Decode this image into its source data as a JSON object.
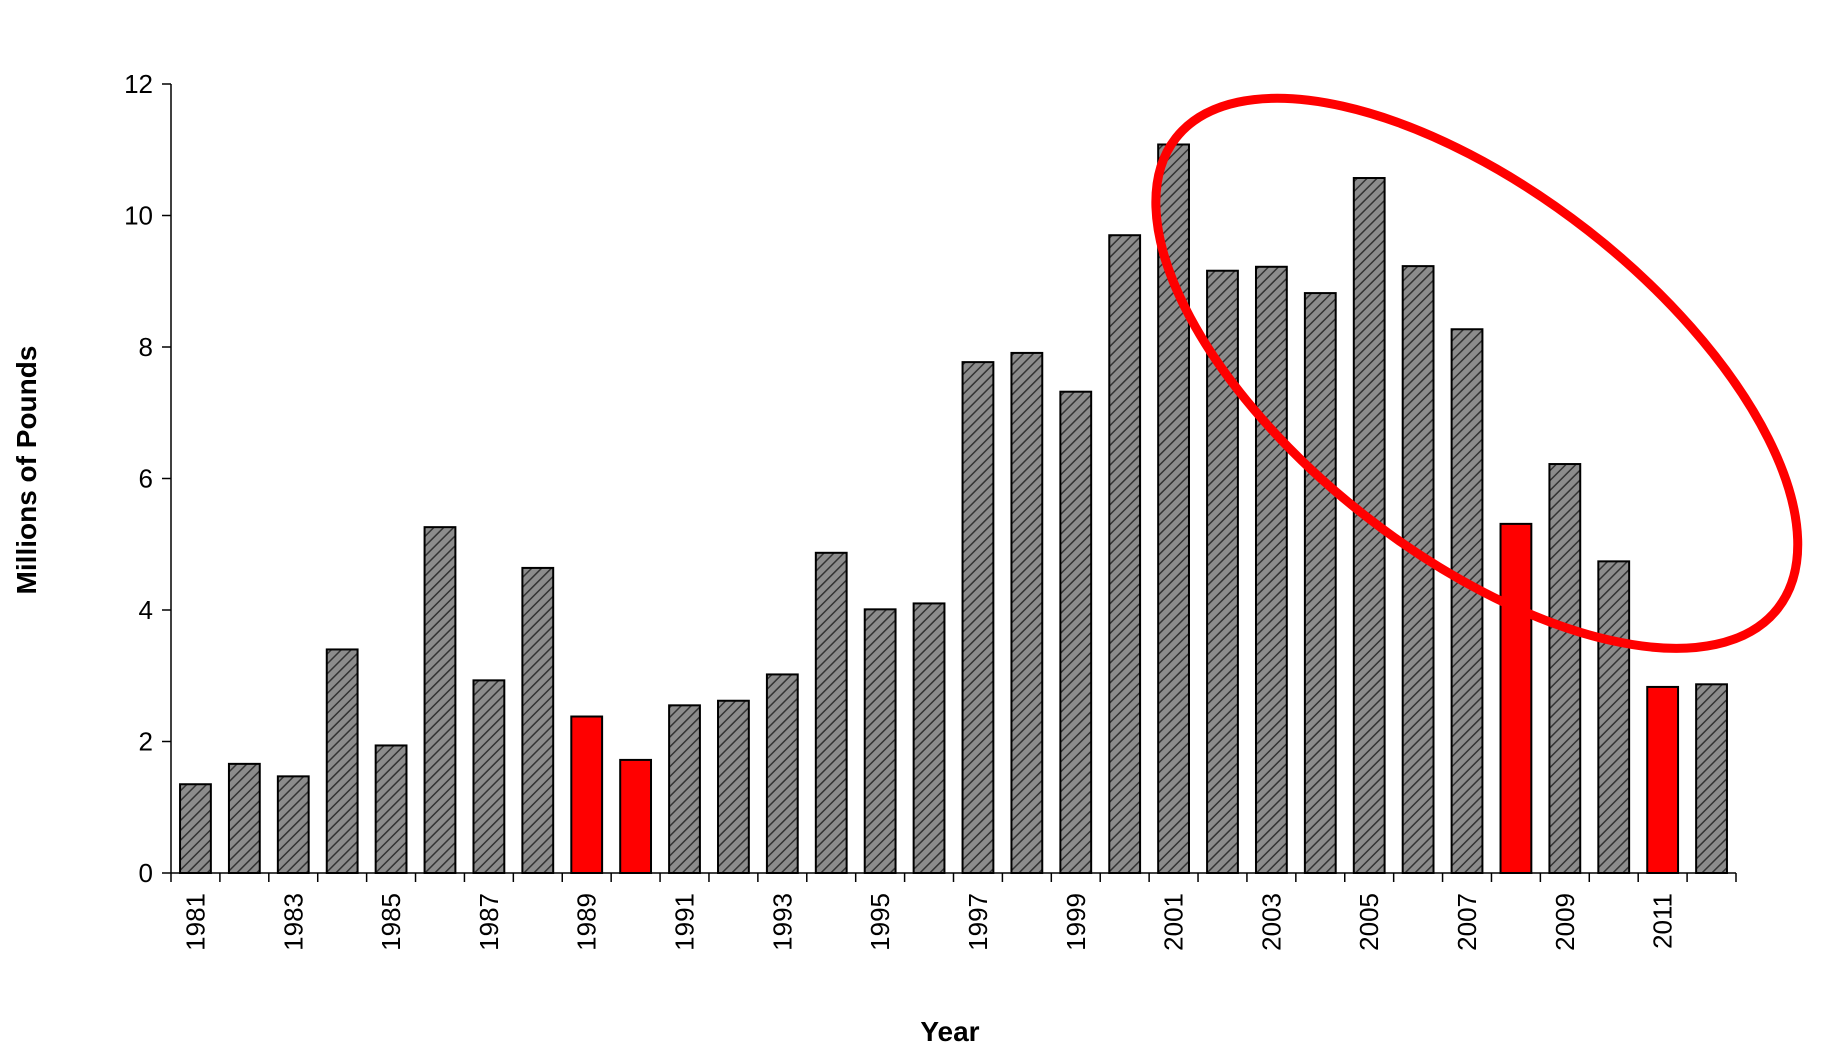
{
  "chart_data": {
    "type": "bar",
    "title": "",
    "xlabel": "Year",
    "ylabel": "Millions of Pounds",
    "ylim": [
      0,
      12
    ],
    "yticks": [
      0,
      2,
      4,
      6,
      8,
      10,
      12
    ],
    "xtick_labels": [
      "1981",
      "1983",
      "1985",
      "1987",
      "1989",
      "1991",
      "1993",
      "1995",
      "1997",
      "1999",
      "2001",
      "2003",
      "2005",
      "2007",
      "2009",
      "2011"
    ],
    "grid": false,
    "legend": "none",
    "categories": [
      "1981",
      "1982",
      "1983",
      "1984",
      "1985",
      "1986",
      "1987",
      "1988",
      "1989",
      "1990",
      "1991",
      "1992",
      "1993",
      "1994",
      "1995",
      "1996",
      "1997",
      "1998",
      "1999",
      "2000",
      "2001",
      "2002",
      "2003",
      "2004",
      "2005",
      "2006",
      "2007",
      "2008",
      "2009",
      "2010",
      "2011",
      "2012"
    ],
    "values": [
      1.35,
      1.66,
      1.47,
      3.4,
      1.94,
      5.26,
      2.93,
      4.64,
      2.38,
      1.72,
      2.55,
      2.62,
      3.02,
      4.87,
      4.01,
      4.1,
      7.77,
      7.91,
      7.32,
      9.7,
      11.08,
      9.16,
      9.22,
      8.82,
      10.57,
      9.23,
      8.27,
      5.31,
      6.22,
      4.74,
      2.83,
      2.87
    ],
    "highlighted_categories": [
      "1989",
      "1990",
      "2008",
      "2011"
    ],
    "colors": {
      "bar_fill": "#8c8c8c",
      "bar_hatch": "#333333",
      "highlight_fill": "#ff0000",
      "annotation_ellipse": "#ff0000"
    },
    "annotations": [
      {
        "type": "ellipse",
        "color": "#ff0000",
        "encloses": [
          "2001",
          "2002",
          "2003",
          "2004",
          "2005",
          "2006",
          "2007",
          "2008",
          "2009",
          "2010",
          "2011",
          "2012"
        ]
      }
    ]
  }
}
